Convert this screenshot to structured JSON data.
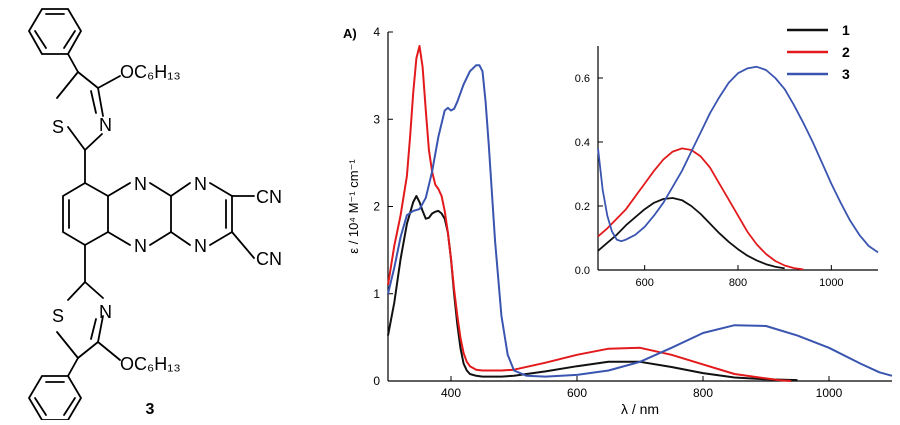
{
  "structure": {
    "compound_label": "3",
    "atoms": {
      "oc6h13_top": "OC₆H₁₃",
      "oc6h13_bottom": "OC₆H₁₃",
      "n": "N",
      "s": "S",
      "cn": "CN"
    }
  },
  "panel_label": "A)",
  "chart_data": [
    {
      "type": "line",
      "title": "",
      "xlabel": "λ / nm",
      "ylabel": "ε / 10⁴ M⁻¹ cm⁻¹",
      "xlim": [
        300,
        1100
      ],
      "ylim": [
        0,
        4
      ],
      "xticks": [
        400,
        600,
        800,
        1000
      ],
      "yticks": [
        0,
        1,
        2,
        3,
        4
      ],
      "legend": {
        "position": "top-right",
        "entries": [
          "1",
          "2",
          "3"
        ]
      },
      "series": [
        {
          "name": "1",
          "color": "#111111",
          "x": [
            300,
            310,
            320,
            330,
            340,
            345,
            350,
            355,
            360,
            365,
            370,
            375,
            380,
            385,
            390,
            395,
            400,
            405,
            410,
            415,
            420,
            425,
            430,
            440,
            450,
            460,
            480,
            500,
            550,
            600,
            650,
            700,
            750,
            800,
            850,
            900,
            950
          ],
          "y": [
            0.52,
            0.9,
            1.4,
            1.8,
            2.05,
            2.12,
            2.05,
            1.95,
            1.86,
            1.87,
            1.92,
            1.94,
            1.95,
            1.92,
            1.86,
            1.7,
            1.4,
            1.0,
            0.65,
            0.38,
            0.2,
            0.12,
            0.08,
            0.06,
            0.05,
            0.05,
            0.05,
            0.06,
            0.11,
            0.17,
            0.22,
            0.22,
            0.16,
            0.09,
            0.04,
            0.02,
            0.01
          ]
        },
        {
          "name": "2",
          "color": "#e31a1c",
          "x": [
            300,
            310,
            320,
            330,
            335,
            340,
            345,
            350,
            355,
            360,
            365,
            370,
            375,
            380,
            385,
            390,
            395,
            400,
            405,
            410,
            415,
            420,
            425,
            430,
            440,
            450,
            460,
            480,
            500,
            550,
            600,
            650,
            700,
            750,
            800,
            850,
            900,
            920,
            940
          ],
          "y": [
            1.1,
            1.55,
            1.9,
            2.35,
            2.8,
            3.3,
            3.7,
            3.84,
            3.6,
            3.1,
            2.65,
            2.4,
            2.25,
            2.2,
            2.12,
            1.95,
            1.7,
            1.4,
            1.05,
            0.75,
            0.5,
            0.32,
            0.22,
            0.17,
            0.13,
            0.12,
            0.12,
            0.12,
            0.13,
            0.21,
            0.3,
            0.37,
            0.38,
            0.3,
            0.19,
            0.08,
            0.03,
            0.01,
            0.0
          ]
        },
        {
          "name": "3",
          "color": "#3a55b0",
          "x": [
            300,
            310,
            320,
            330,
            340,
            350,
            360,
            370,
            380,
            390,
            395,
            400,
            405,
            410,
            420,
            430,
            440,
            445,
            450,
            455,
            460,
            470,
            480,
            490,
            500,
            520,
            550,
            600,
            650,
            700,
            750,
            800,
            850,
            900,
            950,
            1000,
            1050,
            1080,
            1100
          ],
          "y": [
            1.0,
            1.3,
            1.65,
            1.9,
            1.95,
            1.97,
            2.1,
            2.4,
            2.8,
            3.1,
            3.13,
            3.1,
            3.12,
            3.2,
            3.4,
            3.55,
            3.62,
            3.62,
            3.55,
            3.2,
            2.7,
            1.6,
            0.75,
            0.3,
            0.12,
            0.06,
            0.05,
            0.07,
            0.12,
            0.22,
            0.38,
            0.55,
            0.64,
            0.63,
            0.52,
            0.38,
            0.2,
            0.1,
            0.06
          ]
        }
      ]
    },
    {
      "type": "line",
      "title": "",
      "xlabel": "",
      "ylabel": "",
      "xlim": [
        500,
        1100
      ],
      "ylim": [
        0,
        0.7
      ],
      "xticks": [
        600,
        800,
        1000
      ],
      "yticks": [
        0.0,
        0.2,
        0.4,
        0.6
      ],
      "ytick_labels": [
        "0.0",
        "0.2",
        "0.4",
        "0.6"
      ],
      "series": [
        {
          "name": "1",
          "color": "#111111",
          "x": [
            500,
            520,
            540,
            560,
            580,
            600,
            620,
            640,
            660,
            680,
            700,
            720,
            740,
            760,
            780,
            800,
            820,
            840,
            860,
            880,
            900
          ],
          "y": [
            0.06,
            0.085,
            0.11,
            0.14,
            0.165,
            0.19,
            0.21,
            0.222,
            0.225,
            0.218,
            0.2,
            0.175,
            0.145,
            0.115,
            0.088,
            0.065,
            0.045,
            0.03,
            0.018,
            0.01,
            0.005
          ]
        },
        {
          "name": "2",
          "color": "#e31a1c",
          "x": [
            500,
            520,
            540,
            560,
            580,
            600,
            620,
            640,
            660,
            680,
            700,
            720,
            740,
            760,
            780,
            800,
            820,
            840,
            860,
            880,
            900,
            920,
            940
          ],
          "y": [
            0.105,
            0.13,
            0.16,
            0.19,
            0.23,
            0.27,
            0.31,
            0.345,
            0.37,
            0.38,
            0.375,
            0.355,
            0.32,
            0.27,
            0.22,
            0.17,
            0.12,
            0.08,
            0.05,
            0.028,
            0.014,
            0.006,
            0.002
          ]
        },
        {
          "name": "3",
          "color": "#3a55b0",
          "x": [
            500,
            510,
            520,
            530,
            540,
            550,
            560,
            580,
            600,
            620,
            640,
            660,
            680,
            700,
            720,
            740,
            760,
            780,
            800,
            820,
            840,
            860,
            880,
            900,
            920,
            940,
            960,
            980,
            1000,
            1020,
            1040,
            1060,
            1080,
            1100
          ],
          "y": [
            0.38,
            0.25,
            0.17,
            0.12,
            0.095,
            0.09,
            0.095,
            0.11,
            0.135,
            0.17,
            0.21,
            0.26,
            0.31,
            0.37,
            0.43,
            0.49,
            0.54,
            0.585,
            0.615,
            0.63,
            0.635,
            0.625,
            0.6,
            0.565,
            0.515,
            0.46,
            0.4,
            0.335,
            0.27,
            0.21,
            0.155,
            0.11,
            0.075,
            0.055
          ]
        }
      ]
    }
  ]
}
